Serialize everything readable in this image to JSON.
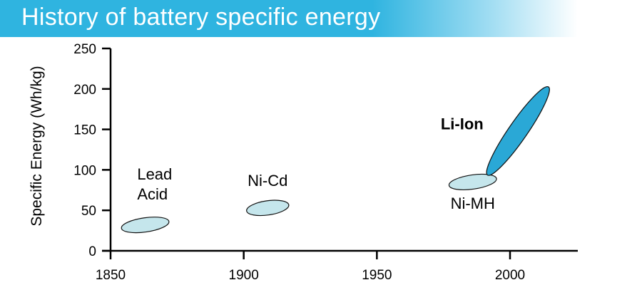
{
  "chart_data": {
    "type": "scatter",
    "title": "History of battery specific energy",
    "xlabel": "",
    "ylabel": "Specific Energy (Wh/kg)",
    "xlim": [
      1850,
      2025
    ],
    "ylim": [
      0,
      250
    ],
    "x_ticks": [
      1850,
      1900,
      1950,
      2000
    ],
    "y_ticks": [
      0,
      50,
      100,
      150,
      200,
      250
    ],
    "grid": false,
    "regions": [
      {
        "label": "Lead Acid",
        "x_range": [
          1855,
          1873
        ],
        "y_range": [
          25,
          40
        ],
        "center": [
          1863,
          32
        ],
        "color": "#c5e6ec"
      },
      {
        "label": "Ni-Cd",
        "x_range": [
          1901,
          1917
        ],
        "y_range": [
          44,
          60
        ],
        "center": [
          1909,
          53
        ],
        "color": "#c5e6ec"
      },
      {
        "label": "Ni-MH",
        "x_range": [
          1978,
          1996
        ],
        "y_range": [
          75,
          93
        ],
        "center": [
          1986,
          85
        ],
        "color": "#c5e6ec"
      },
      {
        "label": "Li-Ion",
        "x_range": [
          1992,
          2014
        ],
        "y_range": [
          95,
          200
        ],
        "center": [
          2003,
          148
        ],
        "color": "#2aa8d6"
      }
    ]
  }
}
